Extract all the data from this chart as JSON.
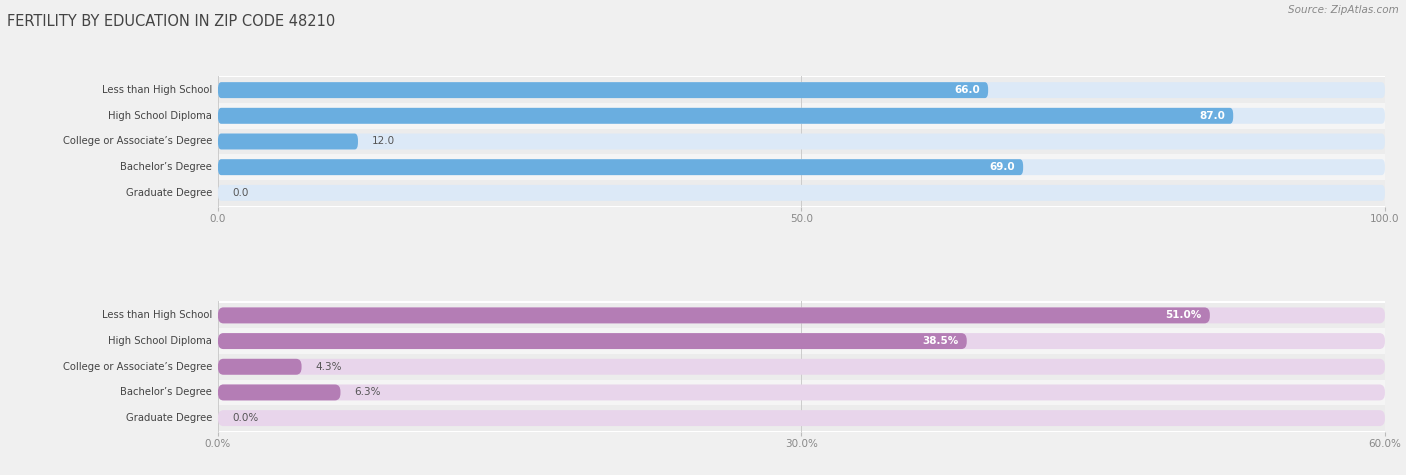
{
  "title": "FERTILITY BY EDUCATION IN ZIP CODE 48210",
  "source": "Source: ZipAtlas.com",
  "top_chart": {
    "categories": [
      "Less than High School",
      "High School Diploma",
      "College or Associate’s Degree",
      "Bachelor’s Degree",
      "Graduate Degree"
    ],
    "values": [
      66.0,
      87.0,
      12.0,
      69.0,
      0.0
    ],
    "bar_color": "#6aaee0",
    "bar_bg_color": "#dce9f7",
    "xlim": [
      0,
      100
    ],
    "xticks": [
      0.0,
      50.0,
      100.0
    ],
    "pct": false
  },
  "bottom_chart": {
    "categories": [
      "Less than High School",
      "High School Diploma",
      "College or Associate’s Degree",
      "Bachelor’s Degree",
      "Graduate Degree"
    ],
    "values": [
      51.0,
      38.5,
      4.3,
      6.3,
      0.0
    ],
    "bar_color": "#b47db5",
    "bar_bg_color": "#e8d5eb",
    "xlim": [
      0,
      60
    ],
    "xticks": [
      0.0,
      30.0,
      60.0
    ],
    "pct": true
  },
  "row_bg_colors": [
    "#ececec",
    "#f5f5f5"
  ],
  "fig_bg_color": "#f0f0f0",
  "bar_height": 0.62,
  "label_fontsize": 7.5,
  "category_fontsize": 7.2,
  "tick_fontsize": 7.5,
  "title_fontsize": 10.5,
  "source_fontsize": 7.5
}
